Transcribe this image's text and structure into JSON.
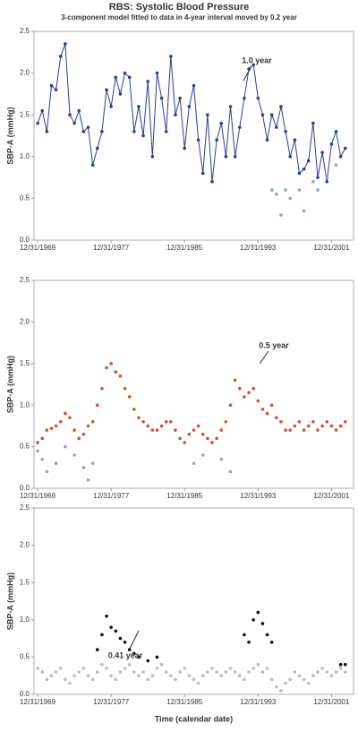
{
  "chart_data": [
    {
      "type": "line",
      "title": "RBS: Systolic Blood Pressure",
      "subtitle": "3-component model fitted to data in 4-year interval moved by 0.2 year",
      "y_label": "SBP-A (mmHg)",
      "annotation": "1.0 year",
      "xlim": [
        1969.6,
        2004.4
      ],
      "ylim": [
        0,
        2.5
      ],
      "xticks": [
        {
          "value": 1970,
          "label": "12/31/1969"
        },
        {
          "value": 1978,
          "label": "12/31/1977"
        },
        {
          "value": 1986,
          "label": "12/31/1985"
        },
        {
          "value": 1994,
          "label": "12/31/1993"
        },
        {
          "value": 2002,
          "label": "12/31/2001"
        }
      ],
      "yticks": [
        {
          "value": 0,
          "label": "0.0"
        },
        {
          "value": 0.5,
          "label": "0.5"
        },
        {
          "value": 1,
          "label": "1.0"
        },
        {
          "value": 1.5,
          "label": "1.5"
        },
        {
          "value": 2,
          "label": "2.0"
        },
        {
          "value": 2.5,
          "label": "2.5"
        }
      ],
      "series": [
        {
          "color": "#2a3f9a",
          "mode": "lines+markers",
          "x": [
            1970,
            1970.5,
            1971,
            1971.5,
            1972,
            1972.5,
            1973,
            1973.5,
            1974,
            1974.5,
            1975,
            1975.5,
            1976,
            1976.5,
            1977,
            1977.5,
            1978,
            1978.5,
            1979,
            1979.5,
            1980,
            1980.5,
            1981,
            1981.5,
            1982,
            1982.5,
            1983,
            1983.5,
            1984,
            1984.5,
            1985,
            1985.5,
            1986,
            1986.5,
            1987,
            1987.5,
            1988,
            1988.5,
            1989,
            1989.5,
            1990,
            1990.5,
            1991,
            1991.5,
            1992,
            1992.5,
            1993,
            1993.5,
            1994,
            1994.5,
            1995,
            1995.5,
            1996,
            1996.5,
            1997,
            1997.5,
            1998,
            1998.5,
            1999,
            1999.5,
            2000,
            2000.5,
            2001,
            2001.5,
            2002,
            2002.5,
            2003,
            2003.5
          ],
          "values": [
            1.4,
            1.55,
            1.3,
            1.85,
            1.8,
            2.2,
            2.35,
            1.5,
            1.4,
            1.55,
            1.3,
            1.35,
            0.9,
            1.1,
            1.3,
            1.8,
            1.6,
            1.95,
            1.75,
            2.0,
            1.95,
            1.3,
            1.6,
            1.25,
            1.9,
            1.0,
            2.0,
            1.7,
            1.3,
            2.2,
            1.5,
            1.7,
            1.1,
            1.6,
            1.85,
            1.2,
            0.8,
            1.5,
            0.7,
            1.2,
            1.4,
            1.0,
            1.6,
            1.0,
            1.35,
            1.7,
            2.05,
            2.1,
            1.7,
            1.5,
            1.2,
            1.5,
            1.35,
            1.6,
            1.3,
            1.0,
            1.2,
            0.8,
            0.85,
            0.95,
            1.4,
            0.75,
            1.05,
            0.7,
            1.15,
            1.3,
            1.0,
            1.1
          ]
        },
        {
          "color": "#8aa0e0",
          "mode": "markers",
          "x": [
            1995.5,
            1996,
            1996.5,
            1997,
            1997.5,
            1998.5,
            1999,
            2000,
            2000.5,
            2001.5,
            2002.5
          ],
          "values": [
            0.6,
            0.55,
            0.3,
            0.6,
            0.5,
            0.6,
            0.35,
            0.7,
            0.6,
            0.75,
            0.9
          ]
        }
      ]
    },
    {
      "type": "scatter",
      "y_label": "SBP-A (mmHg)",
      "annotation": "0.5 year",
      "xlim": [
        1969.6,
        2004.4
      ],
      "ylim": [
        0,
        2.5
      ],
      "xticks": [
        {
          "value": 1970,
          "label": "12/31/1969"
        },
        {
          "value": 1978,
          "label": "12/31/1977"
        },
        {
          "value": 1986,
          "label": "12/31/1985"
        },
        {
          "value": 1994,
          "label": "12/31/1993"
        },
        {
          "value": 2002,
          "label": "12/31/2001"
        }
      ],
      "yticks": [
        {
          "value": 0,
          "label": "0.0"
        },
        {
          "value": 0.5,
          "label": "0.5"
        },
        {
          "value": 1,
          "label": "1.0"
        },
        {
          "value": 1.5,
          "label": "1.5"
        },
        {
          "value": 2,
          "label": "2.0"
        },
        {
          "value": 2.5,
          "label": "2.5"
        }
      ],
      "series": [
        {
          "color": "#d9502e",
          "mode": "markers",
          "x": [
            1970,
            1970.5,
            1971,
            1971.5,
            1972,
            1972.5,
            1973,
            1973.5,
            1974,
            1974.5,
            1975,
            1975.5,
            1976,
            1976.5,
            1977,
            1977.5,
            1978,
            1978.5,
            1979,
            1979.5,
            1980,
            1980.5,
            1981,
            1981.5,
            1982,
            1982.5,
            1983,
            1983.5,
            1984,
            1984.5,
            1985,
            1985.5,
            1986,
            1986.5,
            1987,
            1987.5,
            1988,
            1988.5,
            1989,
            1989.5,
            1990,
            1990.5,
            1991,
            1991.5,
            1992,
            1992.5,
            1993,
            1993.5,
            1994,
            1994.5,
            1995,
            1995.5,
            1996,
            1996.5,
            1997,
            1997.5,
            1998,
            1998.5,
            1999,
            1999.5,
            2000,
            2000.5,
            2001,
            2001.5,
            2002,
            2002.5,
            2003,
            2003.5
          ],
          "values": [
            0.55,
            0.6,
            0.7,
            0.72,
            0.75,
            0.8,
            0.9,
            0.85,
            0.7,
            0.6,
            0.65,
            0.75,
            0.8,
            1.0,
            1.2,
            1.45,
            1.5,
            1.4,
            1.35,
            1.2,
            1.1,
            0.95,
            0.85,
            0.8,
            0.75,
            0.7,
            0.7,
            0.75,
            0.8,
            0.8,
            0.7,
            0.6,
            0.55,
            0.65,
            0.7,
            0.75,
            0.65,
            0.6,
            0.55,
            0.6,
            0.7,
            0.8,
            1.0,
            1.3,
            1.2,
            1.1,
            1.15,
            1.2,
            1.05,
            0.95,
            0.9,
            1.0,
            0.85,
            0.8,
            0.7,
            0.7,
            0.75,
            0.8,
            0.7,
            0.75,
            0.8,
            0.7,
            0.75,
            0.8,
            0.75,
            0.7,
            0.75,
            0.8
          ]
        },
        {
          "color": "#a898c8",
          "mode": "markers",
          "x": [
            1970,
            1970.5,
            1971,
            1972,
            1973,
            1974,
            1975,
            1975.5,
            1976,
            1987,
            1988,
            1990,
            1991
          ],
          "values": [
            0.45,
            0.35,
            0.2,
            0.3,
            0.5,
            0.4,
            0.25,
            0.1,
            0.3,
            0.3,
            0.4,
            0.35,
            0.2
          ]
        }
      ]
    },
    {
      "type": "scatter",
      "y_label": "SBP-A (mmHg)",
      "annotation": "0.41 year",
      "x_label": "Time (calendar date)",
      "xlim": [
        1969.6,
        2004.4
      ],
      "ylim": [
        0,
        2.5
      ],
      "xticks": [
        {
          "value": 1970,
          "label": "12/31/1969"
        },
        {
          "value": 1978,
          "label": "12/31/1977"
        },
        {
          "value": 1986,
          "label": "12/31/1985"
        },
        {
          "value": 1994,
          "label": "12/31/1993"
        },
        {
          "value": 2002,
          "label": "12/31/2001"
        }
      ],
      "yticks": [
        {
          "value": 0,
          "label": "0.0"
        },
        {
          "value": 0.5,
          "label": "0.5"
        },
        {
          "value": 1,
          "label": "1.0"
        },
        {
          "value": 1.5,
          "label": "1.5"
        },
        {
          "value": 2,
          "label": "2.0"
        },
        {
          "value": 2.5,
          "label": "2.5"
        }
      ],
      "series": [
        {
          "color": "#b8bec4",
          "mode": "markers",
          "x": [
            1970,
            1970.5,
            1971,
            1971.5,
            1972,
            1972.5,
            1973,
            1973.5,
            1974,
            1974.5,
            1975,
            1975.5,
            1976,
            1976.5,
            1977,
            1977.5,
            1978,
            1978.5,
            1979,
            1979.5,
            1980,
            1980.5,
            1981,
            1981.5,
            1982,
            1982.5,
            1983,
            1983.5,
            1984,
            1984.5,
            1985,
            1985.5,
            1986,
            1986.5,
            1987,
            1987.5,
            1988,
            1988.5,
            1989,
            1989.5,
            1990,
            1990.5,
            1991,
            1991.5,
            1992,
            1992.5,
            1993,
            1993.5,
            1994,
            1994.5,
            1995,
            1995.5,
            1996,
            1996.5,
            1997,
            1997.5,
            1998,
            1998.5,
            1999,
            1999.5,
            2000,
            2000.5,
            2001,
            2001.5,
            2002,
            2002.5,
            2003,
            2003.5
          ],
          "values": [
            0.35,
            0.3,
            0.2,
            0.25,
            0.3,
            0.35,
            0.2,
            0.15,
            0.25,
            0.3,
            0.35,
            0.25,
            0.2,
            0.3,
            0.4,
            0.35,
            0.25,
            0.2,
            0.3,
            0.35,
            0.4,
            0.3,
            0.25,
            0.3,
            0.2,
            0.25,
            0.35,
            0.4,
            0.3,
            0.25,
            0.2,
            0.3,
            0.35,
            0.25,
            0.2,
            0.15,
            0.25,
            0.3,
            0.35,
            0.3,
            0.25,
            0.3,
            0.35,
            0.3,
            0.25,
            0.2,
            0.3,
            0.35,
            0.4,
            0.3,
            0.35,
            0.2,
            0.1,
            0.05,
            0.15,
            0.2,
            0.3,
            0.25,
            0.2,
            0.15,
            0.25,
            0.3,
            0.35,
            0.3,
            0.25,
            0.3,
            0.35,
            0.3
          ]
        },
        {
          "color": "#111111",
          "mode": "markers",
          "x": [
            1976.5,
            1977,
            1977.5,
            1978,
            1978.5,
            1979,
            1979.5,
            1980,
            1980.5,
            1981,
            1982,
            1983,
            1992.5,
            1993,
            1993.5,
            1994,
            1994.5,
            1995,
            1995.5,
            2003,
            2003.5
          ],
          "values": [
            0.6,
            0.8,
            1.05,
            0.9,
            0.85,
            0.75,
            0.7,
            0.6,
            0.55,
            0.5,
            0.45,
            0.5,
            0.8,
            0.7,
            1.0,
            1.1,
            0.95,
            0.8,
            0.7,
            0.4,
            0.4
          ]
        }
      ]
    }
  ]
}
